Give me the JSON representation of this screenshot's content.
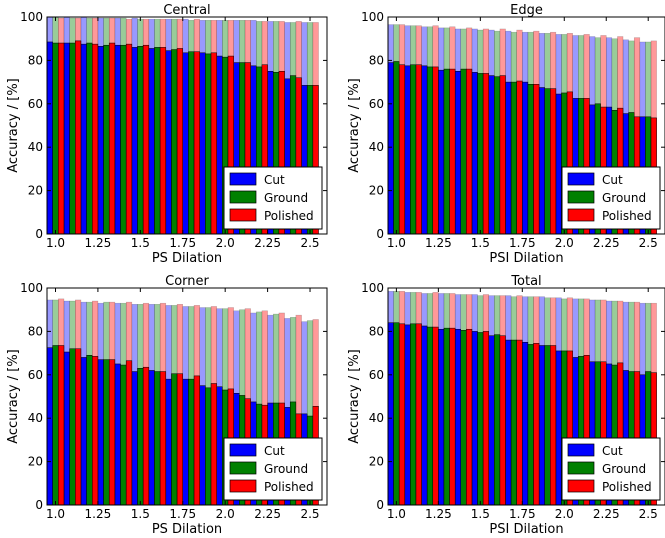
{
  "figure": {
    "colors": {
      "cut": "#0000ff",
      "ground": "#008000",
      "polished": "#ff0000"
    }
  },
  "chart_data": [
    {
      "type": "bar",
      "title": "Central",
      "xlabel": "PS  Dilation",
      "ylabel": "Accuracy / [%]",
      "ylim": [
        0,
        100
      ],
      "xlim": [
        0.95,
        2.6
      ],
      "yticks": [
        0,
        20,
        40,
        60,
        80,
        100
      ],
      "xticks": [
        "1.0",
        "1.25",
        "1.5",
        "1.75",
        "2.0",
        "2.25",
        "2.5"
      ],
      "xtick_values": [
        1.0,
        1.25,
        1.5,
        1.75,
        2.0,
        2.25,
        2.5
      ],
      "legend_position": "lower-right",
      "x": [
        1.0,
        1.1,
        1.2,
        1.3,
        1.4,
        1.5,
        1.6,
        1.7,
        1.8,
        1.9,
        2.0,
        2.1,
        2.2,
        2.3,
        2.4,
        2.5
      ],
      "series": [
        {
          "name": "Cut",
          "color": "#0000ff",
          "values": [
            88.5,
            88.0,
            87.5,
            86.5,
            87.0,
            86.0,
            85.5,
            84.5,
            83.5,
            83.5,
            82.0,
            79.0,
            77.5,
            75.0,
            71.5,
            68.5
          ],
          "upper": [
            100,
            100,
            100,
            99.5,
            99.5,
            99.5,
            99,
            99,
            99,
            98.5,
            98.5,
            98.5,
            98.5,
            98,
            97.5,
            97.5
          ]
        },
        {
          "name": "Ground",
          "color": "#008000",
          "values": [
            88.0,
            88.0,
            88.0,
            87.0,
            87.0,
            86.5,
            86.0,
            85.0,
            84.0,
            83.0,
            81.5,
            79.0,
            77.0,
            74.5,
            73.0,
            68.5
          ],
          "upper": [
            100,
            99.5,
            99.5,
            99.5,
            99.5,
            99,
            99,
            99,
            98.5,
            98.5,
            98.5,
            98.5,
            98,
            98,
            97.5,
            97.5
          ]
        },
        {
          "name": "Polished",
          "color": "#ff0000",
          "values": [
            88.0,
            89.0,
            87.5,
            88.0,
            87.5,
            87.0,
            86.0,
            85.5,
            84.0,
            83.5,
            82.0,
            79.0,
            78.0,
            75.0,
            72.0,
            68.5
          ],
          "upper": [
            99.5,
            99.5,
            99.5,
            99.5,
            99,
            99,
            99,
            99,
            99,
            98.5,
            98.5,
            98.5,
            98,
            98,
            98,
            97.5
          ]
        }
      ]
    },
    {
      "type": "bar",
      "title": "Edge",
      "xlabel": "PSI Dilation",
      "ylabel": "Accuracy / [%]",
      "ylim": [
        0,
        100
      ],
      "xlim": [
        0.95,
        2.6
      ],
      "yticks": [
        0,
        20,
        40,
        60,
        80,
        100
      ],
      "xticks": [
        "1.0",
        "1.25",
        "1.5",
        "1.75",
        "2.0",
        "2.25",
        "2.5"
      ],
      "xtick_values": [
        1.0,
        1.25,
        1.5,
        1.75,
        2.0,
        2.25,
        2.5
      ],
      "legend_position": "lower-right",
      "x": [
        1.0,
        1.1,
        1.2,
        1.3,
        1.4,
        1.5,
        1.6,
        1.7,
        1.8,
        1.9,
        2.0,
        2.1,
        2.2,
        2.3,
        2.4,
        2.5
      ],
      "series": [
        {
          "name": "Cut",
          "color": "#0000ff",
          "values": [
            79.0,
            77.5,
            77.5,
            75.5,
            75.0,
            74.5,
            73.0,
            70.0,
            70.0,
            67.5,
            64.5,
            62.5,
            59.5,
            58.5,
            55.5,
            54.0
          ],
          "upper": [
            96.5,
            96,
            95.5,
            95,
            94.5,
            94.5,
            94,
            93.5,
            93,
            92.5,
            92,
            91.5,
            91,
            90.5,
            89.5,
            88.5
          ]
        },
        {
          "name": "Ground",
          "color": "#008000",
          "values": [
            79.5,
            78.0,
            77.0,
            76.0,
            76.0,
            74.0,
            72.5,
            70.0,
            69.0,
            67.0,
            65.0,
            62.5,
            60.0,
            57.0,
            56.0,
            54.0
          ],
          "upper": [
            96.5,
            96,
            95.5,
            95,
            94.5,
            94,
            93.5,
            93,
            93,
            92.5,
            92,
            91.5,
            90.5,
            90,
            89,
            88.5
          ]
        },
        {
          "name": "Polished",
          "color": "#ff0000",
          "values": [
            78.0,
            78.0,
            77.0,
            76.0,
            76.0,
            74.0,
            73.0,
            70.5,
            69.0,
            67.0,
            65.5,
            62.5,
            58.5,
            58.0,
            54.0,
            53.5
          ],
          "upper": [
            96.5,
            96,
            96,
            95.5,
            95,
            94.5,
            94.5,
            94,
            93.5,
            93,
            92.5,
            92,
            91.5,
            91,
            90.5,
            89
          ]
        }
      ]
    },
    {
      "type": "bar",
      "title": "Corner",
      "xlabel": "PS  Dilation",
      "ylabel": "Accuracy / [%]",
      "ylim": [
        0,
        100
      ],
      "xlim": [
        0.95,
        2.6
      ],
      "yticks": [
        0,
        20,
        40,
        60,
        80,
        100
      ],
      "xticks": [
        "1.0",
        "1.25",
        "1.5",
        "1.75",
        "2.0",
        "2.25",
        "2.5"
      ],
      "xtick_values": [
        1.0,
        1.25,
        1.5,
        1.75,
        2.0,
        2.25,
        2.5
      ],
      "legend_position": "lower-right",
      "x": [
        1.0,
        1.1,
        1.2,
        1.3,
        1.4,
        1.5,
        1.6,
        1.7,
        1.8,
        1.9,
        2.0,
        2.1,
        2.2,
        2.3,
        2.4,
        2.5
      ],
      "series": [
        {
          "name": "Cut",
          "color": "#0000ff",
          "values": [
            72.5,
            70.5,
            68.0,
            67.0,
            65.0,
            61.5,
            62.0,
            58.0,
            58.0,
            55.0,
            54.5,
            51.5,
            47.5,
            47.0,
            45.0,
            42.0
          ],
          "upper": [
            94.5,
            94,
            93.5,
            93,
            93,
            92.5,
            92.5,
            92,
            91.5,
            91,
            90.5,
            89.5,
            88.5,
            87.5,
            86,
            84.5
          ]
        },
        {
          "name": "Ground",
          "color": "#008000",
          "values": [
            73.5,
            72.0,
            69.0,
            67.0,
            64.5,
            63.0,
            61.5,
            60.5,
            58.0,
            54.0,
            53.0,
            50.5,
            46.5,
            47.0,
            47.5,
            41.0
          ],
          "upper": [
            94.5,
            94,
            93.5,
            93.5,
            93,
            92.5,
            92.5,
            92,
            91.5,
            91,
            90.5,
            90,
            89,
            88,
            86.5,
            85
          ]
        },
        {
          "name": "Polished",
          "color": "#ff0000",
          "values": [
            73.5,
            72.0,
            68.5,
            67.0,
            66.5,
            63.5,
            61.5,
            60.5,
            59.5,
            56.0,
            53.5,
            49.0,
            46.0,
            47.0,
            42.0,
            45.5
          ],
          "upper": [
            95,
            94.5,
            94,
            93.5,
            93.5,
            93,
            93,
            92.5,
            92,
            91.5,
            91,
            90.5,
            89.5,
            88.5,
            87.5,
            85.5
          ]
        }
      ]
    },
    {
      "type": "bar",
      "title": "Total",
      "xlabel": "PSI Dilation",
      "ylabel": "Accuracy / [%]",
      "ylim": [
        0,
        100
      ],
      "xlim": [
        0.95,
        2.6
      ],
      "yticks": [
        0,
        20,
        40,
        60,
        80,
        100
      ],
      "xticks": [
        "1.0",
        "1.25",
        "1.5",
        "1.75",
        "2.0",
        "2.25",
        "2.5"
      ],
      "xtick_values": [
        1.0,
        1.25,
        1.5,
        1.75,
        2.0,
        2.25,
        2.5
      ],
      "legend_position": "lower-right",
      "x": [
        1.0,
        1.1,
        1.2,
        1.3,
        1.4,
        1.5,
        1.6,
        1.7,
        1.8,
        1.9,
        2.0,
        2.1,
        2.2,
        2.3,
        2.4,
        2.5
      ],
      "series": [
        {
          "name": "Cut",
          "color": "#0000ff",
          "values": [
            84.0,
            83.0,
            82.5,
            81.0,
            81.0,
            80.0,
            78.0,
            76.0,
            75.0,
            73.5,
            71.0,
            68.0,
            66.0,
            65.0,
            62.0,
            60.0
          ],
          "upper": [
            98.5,
            98,
            97.5,
            97.5,
            97,
            97,
            96.5,
            96.5,
            96,
            96,
            95.5,
            95,
            94.5,
            94,
            93.5,
            93
          ]
        },
        {
          "name": "Ground",
          "color": "#008000",
          "values": [
            84.0,
            83.5,
            82.0,
            81.5,
            80.5,
            79.5,
            78.5,
            76.0,
            74.0,
            73.5,
            71.0,
            68.5,
            66.0,
            64.5,
            61.5,
            61.5
          ],
          "upper": [
            98.5,
            98,
            97.5,
            97.5,
            97,
            96.5,
            96.5,
            96,
            96,
            95.5,
            95,
            95,
            94.5,
            94,
            93.5,
            93
          ]
        },
        {
          "name": "Polished",
          "color": "#ff0000",
          "values": [
            83.5,
            83.5,
            82.0,
            81.5,
            81.0,
            80.0,
            78.0,
            76.0,
            74.5,
            73.5,
            71.0,
            69.0,
            66.0,
            65.5,
            61.5,
            61.0
          ],
          "upper": [
            98.5,
            98,
            98,
            97.5,
            97,
            97,
            96.5,
            96.5,
            96,
            95.5,
            95.5,
            95,
            94.5,
            94,
            93.5,
            93
          ]
        }
      ]
    }
  ]
}
